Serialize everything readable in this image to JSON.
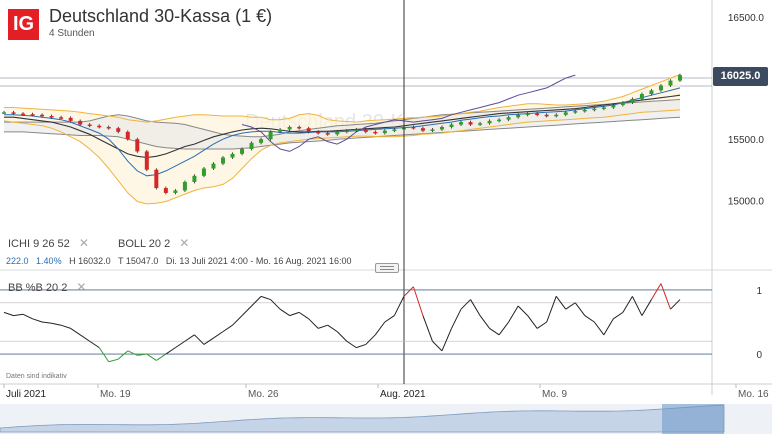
{
  "header": {
    "logo": "IG",
    "title": "Deutschland 30-Kassa (1 €)",
    "subtitle": "4 Stunden"
  },
  "indicators": {
    "ichi": {
      "name": "ICHI",
      "params": "9  26  52"
    },
    "boll": {
      "name": "BOLL",
      "params": "20  2"
    },
    "bbpct": {
      "name": "BB %B",
      "params": "20  2"
    }
  },
  "ohlc_info": {
    "change": "222.0",
    "change_pct": "1.40%",
    "high": "H 16032.0",
    "low": "T 15047.0",
    "range": "Di. 13 Juli 2021 4:00 - Mo. 16 Aug. 2021 16:00"
  },
  "watermark": "Deutschland 30-Kassa",
  "indicative_note": "Daten sind indikativ",
  "last_price_label": "16025.0",
  "colors": {
    "up": "#2e9e2e",
    "down": "#d62728",
    "bollinger": "#f0b43c",
    "tenkan": "#2a6cb6",
    "kijun": "#333333",
    "cloud_span": "#888888",
    "lagging": "#5c4d9a",
    "accent": "#e31e24"
  },
  "chart_data": [
    {
      "type": "candlestick",
      "title": "Deutschland 30-Kassa (1 €)",
      "interval": "4 Stunden",
      "x_ticks": [
        "Juli 2021",
        "Mo. 19",
        "Mo. 26",
        "Aug. 2021",
        "Mo. 9",
        "Mo. 16"
      ],
      "y_ticks": [
        15000.0,
        15500.0,
        16000.0,
        16500.0
      ],
      "ylim": [
        14740,
        16640
      ],
      "last_price": 16025.0,
      "high": 16032.0,
      "low": 15047.0,
      "close_series": [
        15720,
        15710,
        15705,
        15700,
        15690,
        15680,
        15675,
        15650,
        15620,
        15610,
        15600,
        15590,
        15560,
        15500,
        15400,
        15250,
        15100,
        15060,
        15080,
        15150,
        15200,
        15260,
        15300,
        15350,
        15380,
        15420,
        15470,
        15500,
        15560,
        15580,
        15600,
        15590,
        15560,
        15550,
        15540,
        15560,
        15570,
        15580,
        15560,
        15550,
        15570,
        15580,
        15600,
        15590,
        15570,
        15580,
        15600,
        15620,
        15640,
        15620,
        15630,
        15650,
        15660,
        15680,
        15700,
        15710,
        15700,
        15690,
        15700,
        15720,
        15730,
        15740,
        15750,
        15760,
        15780,
        15800,
        15830,
        15870,
        15900,
        15940,
        15980,
        16025
      ],
      "bollinger_upper": [
        15760,
        15760,
        15755,
        15750,
        15745,
        15740,
        15735,
        15730,
        15720,
        15710,
        15700,
        15690,
        15680,
        15660,
        15650,
        15640,
        15650,
        15665,
        15680,
        15690,
        15700,
        15700,
        15695,
        15690,
        15690,
        15690,
        15680,
        15680,
        15660,
        15660,
        15670,
        15700,
        15710,
        15695,
        15660,
        15650,
        15645,
        15640,
        15650,
        15655,
        15660,
        15665,
        15670,
        15675,
        15680,
        15685,
        15690,
        15700,
        15710,
        15720,
        15730,
        15745,
        15760,
        15770,
        15780,
        15790,
        15790,
        15785,
        15780,
        15780,
        15785,
        15790,
        15800,
        15810,
        15830,
        15850,
        15880,
        15910,
        15940,
        15970,
        16000,
        16030
      ],
      "bollinger_lower": [
        15650,
        15640,
        15630,
        15620,
        15610,
        15590,
        15560,
        15520,
        15480,
        15420,
        15350,
        15260,
        15160,
        15060,
        14990,
        14970,
        14975,
        14990,
        15020,
        15050,
        15080,
        15100,
        15110,
        15130,
        15180,
        15260,
        15340,
        15410,
        15450,
        15470,
        15480,
        15490,
        15500,
        15505,
        15510,
        15515,
        15520,
        15525,
        15525,
        15522,
        15520,
        15520,
        15525,
        15530,
        15540,
        15545,
        15550,
        15560,
        15570,
        15580,
        15590,
        15600,
        15610,
        15620,
        15630,
        15640,
        15645,
        15650,
        15655,
        15660,
        15665,
        15670,
        15675,
        15680,
        15690,
        15700,
        15710,
        15720,
        15725,
        15730,
        15735,
        15740
      ],
      "tenkan_sen": [
        15700,
        15700,
        15695,
        15690,
        15680,
        15670,
        15660,
        15640,
        15610,
        15580,
        15550,
        15500,
        15420,
        15320,
        15240,
        15200,
        15210,
        15240,
        15280,
        15320,
        15360,
        15410,
        15460,
        15500,
        15530,
        15550,
        15560,
        15565,
        15565,
        15555,
        15550,
        15550,
        15555,
        15560,
        15560,
        15560,
        15565,
        15570,
        15575,
        15580,
        15585,
        15590,
        15595,
        15600,
        15610,
        15620,
        15630,
        15640,
        15655,
        15665,
        15675,
        15685,
        15690,
        15700,
        15705,
        15710,
        15715,
        15720,
        15725,
        15730,
        15740,
        15750,
        15760,
        15770,
        15780,
        15800,
        15820,
        15840,
        15860,
        15880,
        15900,
        15920
      ],
      "kijun_sen": [
        15680,
        15680,
        15670,
        15660,
        15650,
        15640,
        15620,
        15600,
        15570,
        15540,
        15500,
        15460,
        15420,
        15380,
        15360,
        15350,
        15360,
        15380,
        15410,
        15440,
        15460,
        15490,
        15520,
        15540,
        15560,
        15575,
        15585,
        15590,
        15585,
        15575,
        15565,
        15560,
        15560,
        15565,
        15565,
        15570,
        15575,
        15580,
        15585,
        15590,
        15595,
        15600,
        15610,
        15620,
        15630,
        15640,
        15650,
        15660,
        15670,
        15680,
        15690,
        15700,
        15710,
        15715,
        15720,
        15725,
        15730,
        15735,
        15740,
        15745,
        15750,
        15760,
        15770,
        15780,
        15790,
        15800,
        15810,
        15820,
        15830,
        15840,
        15850,
        15860
      ],
      "cloud_upper": [
        15640,
        15640,
        15640,
        15640,
        15640,
        15640,
        15640,
        15640,
        15640,
        15650,
        15670,
        15690,
        15700,
        15690,
        15670,
        15650,
        15640,
        15635,
        15630,
        15620,
        15600,
        15580,
        15560,
        15540,
        15530,
        15525,
        15520,
        15520,
        15530,
        15540,
        15560,
        15570,
        15580,
        15590,
        15600,
        15610,
        15615,
        15620,
        15625,
        15630,
        15640,
        15650,
        15660,
        15670,
        15680,
        15690,
        15700,
        15705,
        15710,
        15715,
        15720,
        15725,
        15730,
        15735,
        15740,
        15745,
        15750,
        15755,
        15760,
        15765,
        15770,
        15775,
        15780,
        15785,
        15790,
        15795,
        15800,
        15805,
        15810,
        15815,
        15820,
        15825
      ],
      "cloud_lower": [
        15560,
        15560,
        15560,
        15555,
        15550,
        15545,
        15540,
        15535,
        15530,
        15530,
        15530,
        15525,
        15520,
        15500,
        15480,
        15460,
        15440,
        15430,
        15425,
        15420,
        15420,
        15420,
        15420,
        15420,
        15420,
        15425,
        15430,
        15440,
        15450,
        15460,
        15470,
        15475,
        15480,
        15485,
        15490,
        15500,
        15505,
        15510,
        15515,
        15520,
        15525,
        15530,
        15535,
        15540,
        15545,
        15550,
        15555,
        15560,
        15565,
        15570,
        15575,
        15580,
        15585,
        15590,
        15595,
        15600,
        15605,
        15610,
        15615,
        15620,
        15625,
        15630,
        15635,
        15640,
        15645,
        15650,
        15655,
        15660,
        15665,
        15670,
        15675,
        15680
      ],
      "chikou_span": [
        15620,
        15600,
        15560,
        15480,
        15420,
        15400,
        15440,
        15500,
        15520,
        15480,
        15460,
        15500,
        15560,
        15600,
        15620,
        15640,
        15660,
        15650,
        15640,
        15650,
        15660,
        15670,
        15700,
        15720,
        15740,
        15760,
        15780,
        15800,
        15830,
        15860,
        15880,
        15900,
        15920,
        15960,
        16000,
        16025
      ]
    },
    {
      "type": "line",
      "title": "BB %B",
      "params": "20 2",
      "y_ticks": [
        0,
        1
      ],
      "ylim": [
        -0.28,
        1.28
      ],
      "values": [
        0.65,
        0.6,
        0.62,
        0.55,
        0.5,
        0.48,
        0.45,
        0.4,
        0.3,
        0.2,
        0.1,
        -0.12,
        -0.08,
        0.05,
        -0.02,
        0.0,
        -0.1,
        0.0,
        0.1,
        0.2,
        0.3,
        0.15,
        0.25,
        0.35,
        0.45,
        0.6,
        0.75,
        0.9,
        0.85,
        0.7,
        0.6,
        0.65,
        0.55,
        0.4,
        0.45,
        0.35,
        0.2,
        0.1,
        0.15,
        0.3,
        0.5,
        0.6,
        0.9,
        1.05,
        0.6,
        0.2,
        0.05,
        0.4,
        0.7,
        0.85,
        0.6,
        0.4,
        0.3,
        0.5,
        0.75,
        0.6,
        0.4,
        0.5,
        0.9,
        0.7,
        0.8,
        0.6,
        0.5,
        0.3,
        0.55,
        0.65,
        0.9,
        0.6,
        0.85,
        1.1,
        0.7,
        0.85
      ]
    }
  ]
}
